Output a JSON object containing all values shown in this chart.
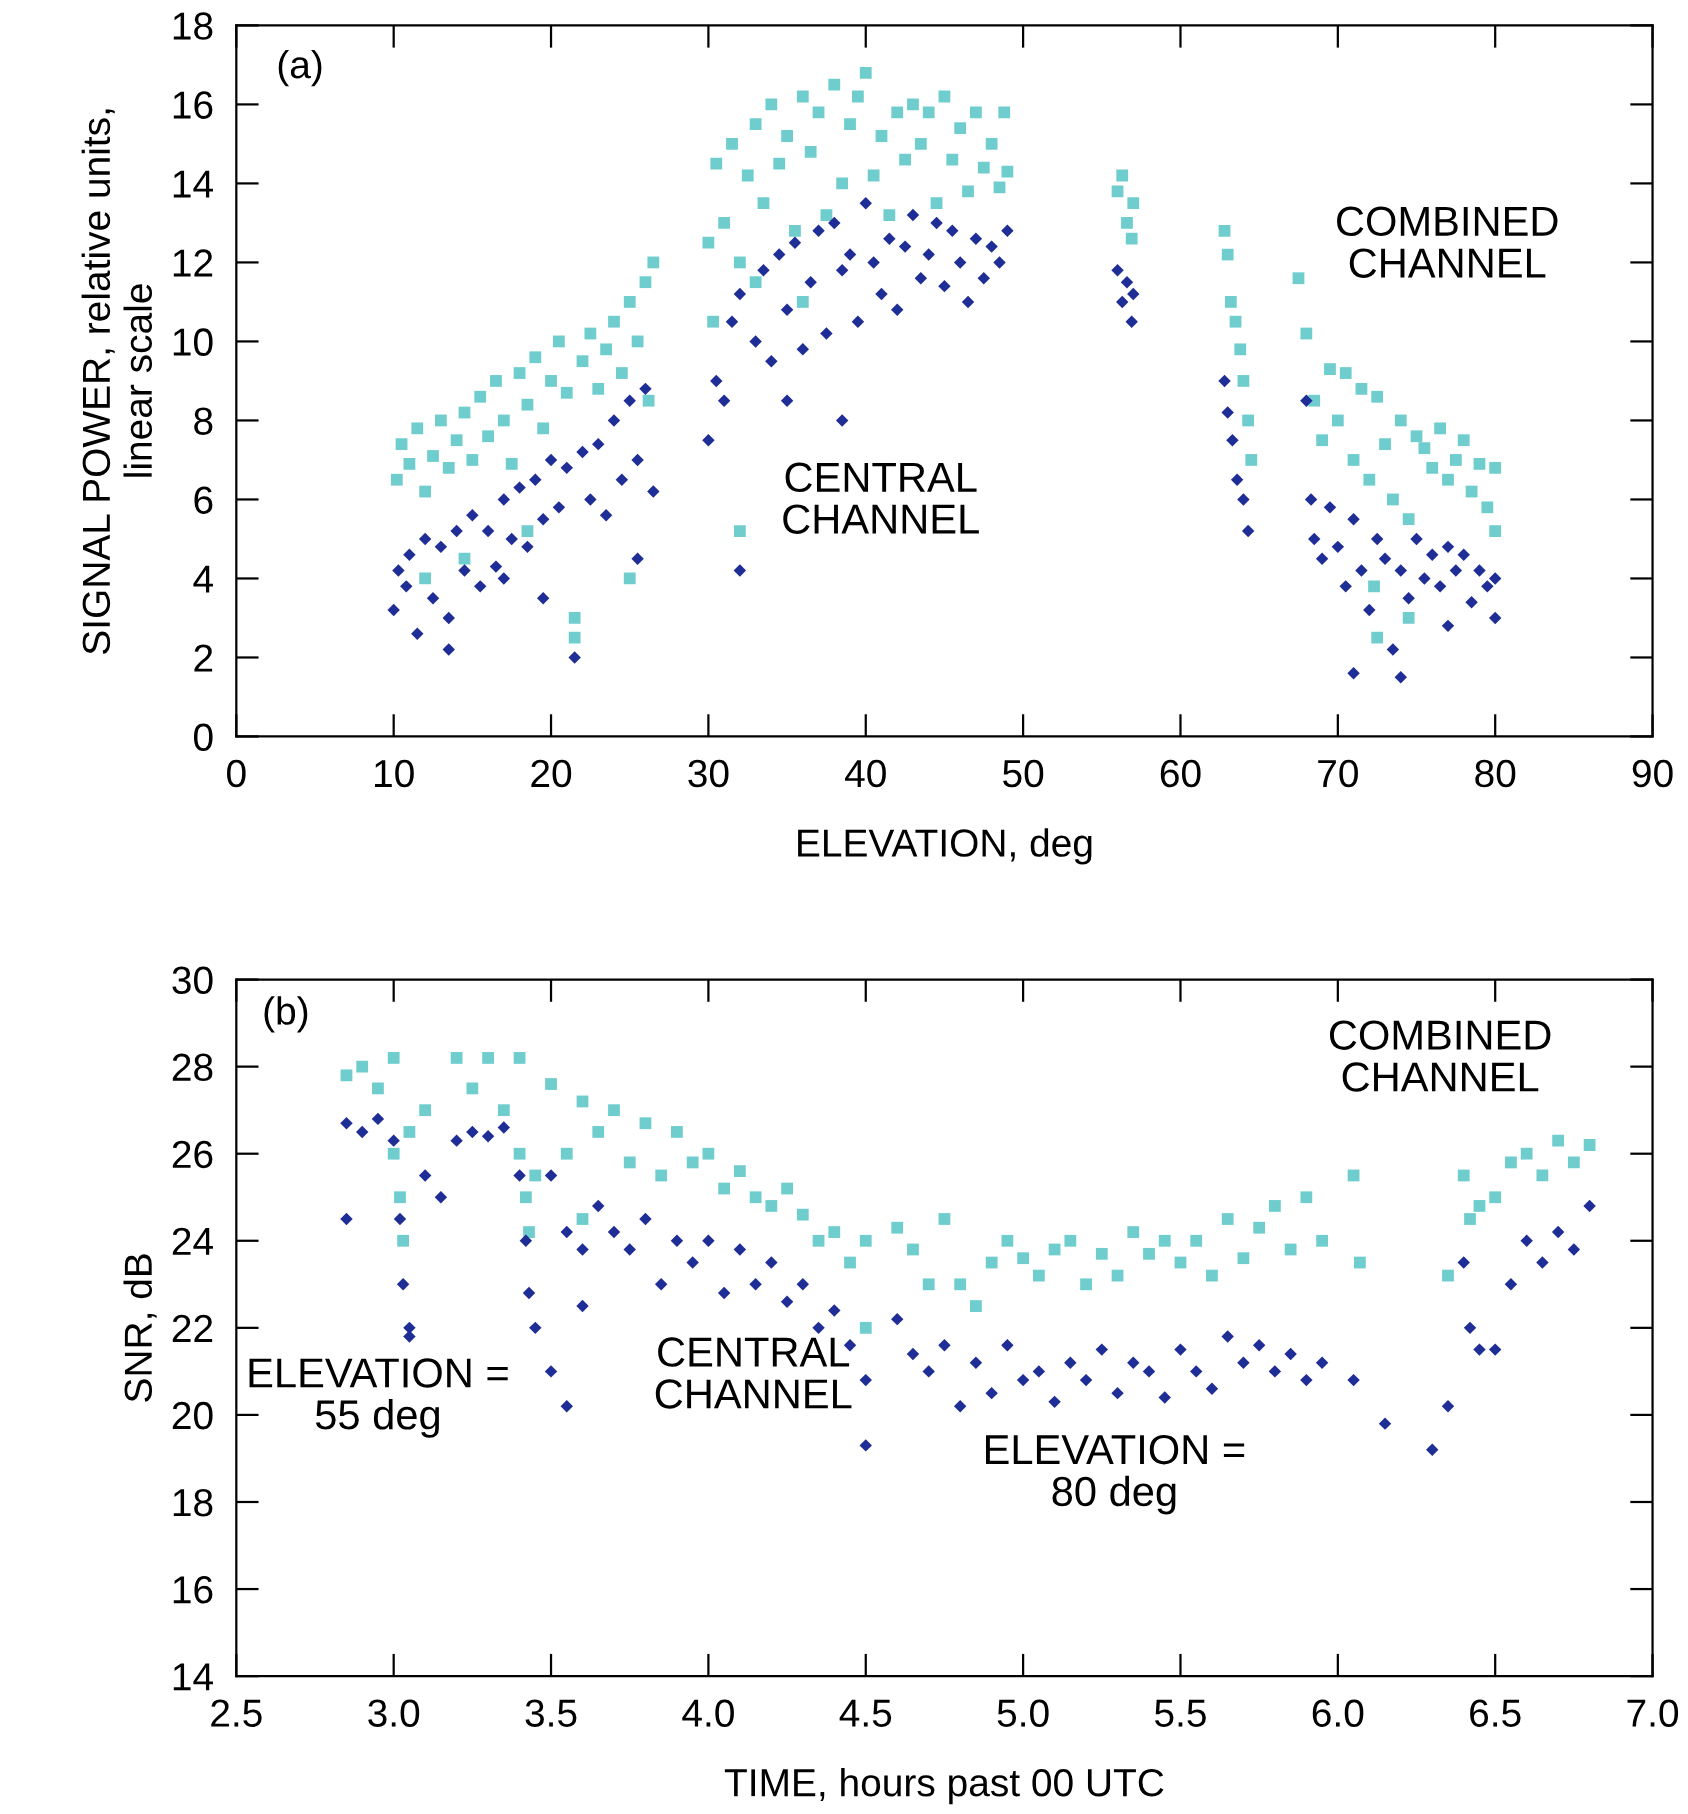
{
  "chart_data": [
    {
      "type": "scatter",
      "xlabel": "ELEVATION, deg",
      "ylabel": "SIGNAL POWER, relative units,\nlinear scale",
      "xlim": [
        0,
        90
      ],
      "xticks": [
        0,
        10,
        20,
        30,
        40,
        50,
        60,
        70,
        80,
        90
      ],
      "ylim": [
        0,
        18
      ],
      "yticks": [
        0,
        2,
        4,
        6,
        8,
        10,
        12,
        14,
        16,
        18
      ],
      "grid": false,
      "legend": false,
      "annotations": [
        "(a)",
        "CENTRAL\nCHANNEL",
        "COMBINED\nCHANNEL"
      ],
      "series": [
        {
          "color": "#6fcdcd",
          "marker": "square",
          "x": [
            10.2,
            10.5,
            11,
            11.5,
            12,
            12.5,
            13,
            13.5,
            14,
            14.5,
            15,
            15.5,
            16,
            16.5,
            17,
            17.5,
            18,
            18.5,
            19,
            19.5,
            20,
            20.5,
            21,
            21.5,
            21.5,
            22,
            22.5,
            23,
            23.5,
            24,
            24.5,
            25,
            25,
            25.5,
            26,
            26.5,
            26.2,
            18.5,
            14.5,
            12,
            30,
            30.3,
            30.5,
            31,
            31.5,
            32,
            32,
            32.5,
            33,
            33.5,
            34,
            34.5,
            35,
            35.5,
            36,
            36.5,
            37,
            37.5,
            38,
            38.5,
            39,
            39.5,
            40,
            40.5,
            41,
            41.5,
            42,
            42.5,
            43,
            43.5,
            44,
            44.5,
            45,
            45.5,
            46,
            46.5,
            47,
            47.5,
            48,
            48.5,
            48.8,
            49,
            36,
            33,
            56,
            56.3,
            56.6,
            56.9,
            57,
            62.8,
            63,
            63.2,
            63.5,
            63.8,
            64,
            64.3,
            64.5,
            67.5,
            68,
            68.5,
            69,
            69.5,
            70,
            70.5,
            71,
            71.5,
            72,
            72.3,
            72.5,
            73,
            73.5,
            74,
            74.5,
            74.5,
            75,
            75.5,
            76,
            76.5,
            77,
            77.5,
            78,
            78.5,
            79,
            79.5,
            80,
            80,
            72.5
          ],
          "values": [
            6.5,
            7.4,
            6.9,
            7.8,
            6.2,
            7.1,
            8.0,
            6.8,
            7.5,
            8.2,
            7.0,
            8.6,
            7.6,
            9.0,
            8.0,
            6.9,
            9.2,
            8.4,
            9.6,
            7.8,
            9.0,
            10.0,
            8.7,
            3.0,
            2.5,
            9.5,
            10.2,
            8.8,
            9.8,
            10.5,
            9.2,
            11.0,
            4.0,
            10.0,
            11.5,
            12.0,
            8.5,
            5.2,
            4.5,
            4.0,
            12.5,
            10.5,
            14.5,
            13.0,
            15.0,
            12.0,
            5.2,
            14.2,
            15.5,
            13.5,
            16.0,
            14.5,
            15.2,
            12.8,
            16.2,
            14.8,
            15.8,
            13.2,
            16.5,
            14.0,
            15.5,
            16.2,
            16.8,
            14.2,
            15.2,
            13.2,
            15.8,
            14.6,
            16.0,
            15.0,
            15.8,
            13.5,
            16.2,
            14.6,
            15.4,
            13.8,
            15.8,
            14.4,
            15.0,
            13.9,
            15.8,
            14.3,
            11.0,
            11.5,
            13.8,
            14.2,
            13.0,
            12.6,
            13.5,
            12.8,
            12.2,
            11.0,
            10.5,
            9.8,
            9.0,
            8.0,
            7.0,
            11.6,
            10.2,
            8.5,
            7.5,
            9.3,
            8.0,
            9.2,
            7.0,
            8.8,
            6.5,
            3.8,
            8.6,
            7.4,
            6.0,
            8.0,
            5.5,
            3.0,
            7.6,
            7.3,
            6.8,
            7.8,
            6.5,
            7.0,
            7.5,
            6.2,
            6.9,
            5.8,
            6.8,
            5.2,
            2.5
          ]
        },
        {
          "color": "#1f2d96",
          "marker": "diamond",
          "x": [
            10,
            10.3,
            10.8,
            11,
            11.5,
            12,
            12.5,
            13,
            13.5,
            14,
            14.5,
            15,
            15.5,
            16,
            16.5,
            17,
            17.5,
            18,
            18.5,
            19,
            19.5,
            20,
            20.5,
            21,
            21.5,
            22,
            22.5,
            23,
            23.5,
            24,
            24.5,
            25,
            25.5,
            26,
            26.5,
            25.5,
            19.5,
            17,
            13.5,
            30,
            30.5,
            31,
            31.5,
            32,
            32,
            33,
            33.5,
            34,
            34.5,
            35,
            35.5,
            36,
            36.5,
            37,
            37.5,
            38,
            38.5,
            39,
            39.5,
            40,
            40.5,
            41,
            41.5,
            42,
            42.5,
            43,
            43.5,
            44,
            44.5,
            45,
            45.5,
            46,
            46.5,
            47,
            47.5,
            48,
            48.5,
            49,
            38.5,
            35,
            56,
            56.3,
            56.6,
            56.9,
            57,
            62.8,
            63,
            63.3,
            63.6,
            64,
            64.3,
            68,
            68.3,
            68.5,
            69,
            69.5,
            70,
            70.5,
            71,
            71.5,
            72,
            72.5,
            73,
            73.5,
            74,
            74,
            74.5,
            75,
            75.5,
            76,
            76.5,
            77,
            77.5,
            78,
            78.5,
            79,
            79.5,
            80,
            80,
            71,
            77
          ],
          "values": [
            3.2,
            4.2,
            3.8,
            4.6,
            2.6,
            5.0,
            3.5,
            4.8,
            3.0,
            5.2,
            4.2,
            5.6,
            3.8,
            5.2,
            4.3,
            6.0,
            5.0,
            6.3,
            4.8,
            6.5,
            5.5,
            7.0,
            5.8,
            6.8,
            2.0,
            7.2,
            6.0,
            7.4,
            5.6,
            8.0,
            6.5,
            8.5,
            7.0,
            8.8,
            6.2,
            4.5,
            3.5,
            4.0,
            2.2,
            7.5,
            9.0,
            8.5,
            10.5,
            11.2,
            4.2,
            10.0,
            11.8,
            9.5,
            12.2,
            10.8,
            12.5,
            9.8,
            11.5,
            12.8,
            10.2,
            13.0,
            11.8,
            12.2,
            10.5,
            13.5,
            12.0,
            11.2,
            12.6,
            10.8,
            12.4,
            13.2,
            11.6,
            12.2,
            13.0,
            11.4,
            12.8,
            12.0,
            11.0,
            12.6,
            11.6,
            12.4,
            12.0,
            12.8,
            8.0,
            8.5,
            11.8,
            11.0,
            11.5,
            10.5,
            11.2,
            9.0,
            8.2,
            7.5,
            6.5,
            6.0,
            5.2,
            8.5,
            6.0,
            5.0,
            4.5,
            5.8,
            4.8,
            3.8,
            5.5,
            4.2,
            3.2,
            5.0,
            4.5,
            2.2,
            4.2,
            1.5,
            3.5,
            5.0,
            4.0,
            4.6,
            3.8,
            4.8,
            4.2,
            4.6,
            3.4,
            4.2,
            3.8,
            3.0,
            4.0,
            1.6,
            2.8
          ]
        }
      ]
    },
    {
      "type": "scatter",
      "xlabel": "TIME, hours past 00 UTC",
      "ylabel": "SNR, dB",
      "xlim": [
        2.5,
        7.0
      ],
      "xticks": [
        2.5,
        {
          "value": 3,
          "label": "3.0"
        },
        3.5,
        {
          "value": 4,
          "label": "4.0"
        },
        4.5,
        {
          "value": 5,
          "label": "5.0"
        },
        5.5,
        {
          "value": 6,
          "label": "6.0"
        },
        6.5,
        {
          "value": 7,
          "label": "7.0"
        }
      ],
      "ylim": [
        14,
        30
      ],
      "yticks": [
        14,
        16,
        18,
        20,
        22,
        24,
        26,
        28,
        30
      ],
      "grid": false,
      "legend": false,
      "annotations": [
        "(b)",
        "COMBINED\nCHANNEL",
        "CENTRAL\nCHANNEL",
        "ELEVATION =\n55 deg",
        "ELEVATION =\n80 deg"
      ],
      "series": [
        {
          "color": "#6fcdcd",
          "marker": "square",
          "x": [
            2.85,
            2.9,
            2.95,
            3.0,
            3.0,
            3.02,
            3.03,
            3.05,
            3.1,
            3.2,
            3.25,
            3.3,
            3.35,
            3.4,
            3.4,
            3.42,
            3.43,
            3.45,
            3.5,
            3.55,
            3.6,
            3.6,
            3.65,
            3.7,
            3.75,
            3.8,
            3.85,
            3.9,
            3.95,
            4.0,
            4.05,
            4.1,
            4.15,
            4.2,
            4.25,
            4.3,
            4.35,
            4.4,
            4.45,
            4.5,
            4.5,
            4.6,
            4.65,
            4.7,
            4.75,
            4.8,
            4.85,
            4.9,
            4.95,
            5.0,
            5.05,
            5.1,
            5.15,
            5.2,
            5.25,
            5.3,
            5.35,
            5.4,
            5.45,
            5.5,
            5.55,
            5.6,
            5.65,
            5.7,
            5.75,
            5.8,
            5.85,
            5.9,
            5.95,
            6.05,
            6.07,
            6.35,
            6.4,
            6.42,
            6.45,
            6.5,
            6.55,
            6.6,
            6.65,
            6.7,
            6.75,
            6.8
          ],
          "values": [
            27.8,
            28.0,
            27.5,
            28.2,
            26.0,
            25.0,
            24.0,
            26.5,
            27.0,
            28.2,
            27.5,
            28.2,
            27.0,
            28.2,
            26.0,
            25.0,
            24.2,
            25.5,
            27.6,
            26.0,
            27.2,
            24.5,
            26.5,
            27.0,
            25.8,
            26.7,
            25.5,
            26.5,
            25.8,
            26.0,
            25.2,
            25.6,
            25.0,
            24.8,
            25.2,
            24.6,
            24.0,
            24.2,
            23.5,
            24.0,
            22.0,
            24.3,
            23.8,
            23.0,
            24.5,
            23.0,
            22.5,
            23.5,
            24.0,
            23.6,
            23.2,
            23.8,
            24.0,
            23.0,
            23.7,
            23.2,
            24.2,
            23.7,
            24.0,
            23.5,
            24.0,
            23.2,
            24.5,
            23.6,
            24.3,
            24.8,
            23.8,
            25.0,
            24.0,
            25.5,
            23.5,
            23.2,
            25.5,
            24.5,
            24.8,
            25.0,
            25.8,
            26.0,
            25.5,
            26.3,
            25.8,
            26.2
          ]
        },
        {
          "color": "#1f2d96",
          "marker": "diamond",
          "x": [
            2.85,
            2.9,
            2.85,
            2.95,
            3.0,
            3.02,
            3.03,
            3.05,
            3.05,
            3.1,
            3.15,
            3.2,
            3.25,
            3.3,
            3.35,
            3.4,
            3.42,
            3.43,
            3.45,
            3.5,
            3.5,
            3.55,
            3.55,
            3.6,
            3.6,
            3.65,
            3.7,
            3.75,
            3.8,
            3.85,
            3.9,
            3.95,
            4.0,
            4.05,
            4.1,
            4.15,
            4.2,
            4.25,
            4.3,
            4.35,
            4.4,
            4.45,
            4.5,
            4.5,
            4.6,
            4.65,
            4.7,
            4.75,
            4.8,
            4.85,
            4.9,
            4.95,
            5.0,
            5.05,
            5.1,
            5.15,
            5.2,
            5.25,
            5.3,
            5.35,
            5.4,
            5.45,
            5.5,
            5.55,
            5.6,
            5.65,
            5.7,
            5.75,
            5.8,
            5.85,
            5.9,
            5.95,
            6.05,
            6.15,
            6.3,
            6.35,
            6.4,
            6.42,
            6.45,
            6.5,
            6.55,
            6.6,
            6.65,
            6.7,
            6.75,
            6.8
          ],
          "values": [
            26.7,
            26.5,
            24.5,
            26.8,
            26.3,
            24.5,
            23.0,
            22.0,
            21.8,
            25.5,
            25.0,
            26.3,
            26.5,
            26.4,
            26.6,
            25.5,
            24.0,
            22.8,
            22.0,
            25.5,
            21.0,
            24.2,
            20.2,
            22.5,
            23.8,
            24.8,
            24.2,
            23.8,
            24.5,
            23.0,
            24.0,
            23.5,
            24.0,
            22.8,
            23.8,
            23.0,
            23.5,
            22.6,
            23.0,
            22.0,
            22.4,
            21.6,
            20.8,
            19.3,
            22.2,
            21.4,
            21.0,
            21.6,
            20.2,
            21.2,
            20.5,
            21.6,
            20.8,
            21.0,
            20.3,
            21.2,
            20.8,
            21.5,
            20.5,
            21.2,
            21.0,
            20.4,
            21.5,
            21.0,
            20.6,
            21.8,
            21.2,
            21.6,
            21.0,
            21.4,
            20.8,
            21.2,
            20.8,
            19.8,
            19.2,
            20.2,
            23.5,
            22.0,
            21.5,
            21.5,
            23.0,
            24.0,
            23.5,
            24.2,
            23.8,
            24.8
          ]
        }
      ]
    }
  ]
}
